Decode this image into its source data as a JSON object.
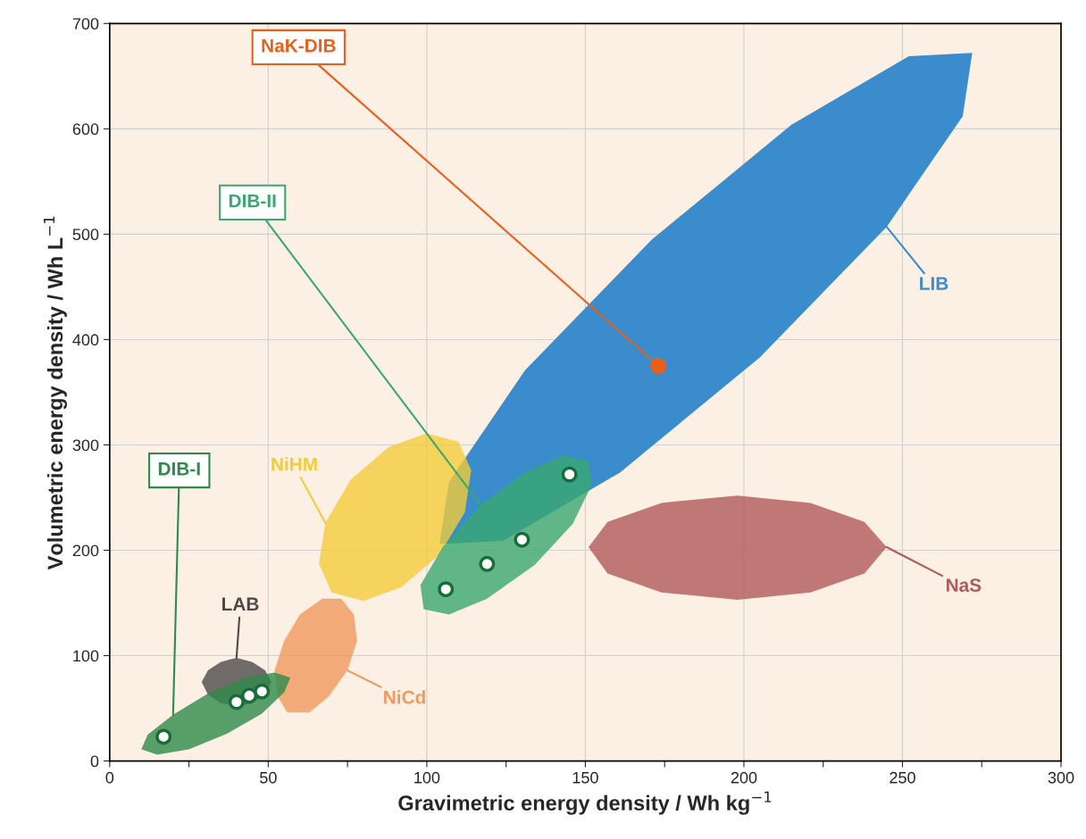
{
  "chart_data": {
    "type": "scatter",
    "xlabel": "Gravimetric energy density / Wh kg$^{−1}$",
    "ylabel": "Volumetric energy density / Wh L$^{−1}$",
    "xlim": [
      0,
      300
    ],
    "ylim": [
      0,
      700
    ],
    "xticks": [
      0,
      {
        "value": 25,
        "label": null
      },
      50,
      {
        "value": 75,
        "label": null
      },
      100,
      {
        "value": 125,
        "label": null
      },
      150,
      {
        "value": 175,
        "label": null
      },
      200,
      {
        "value": 225,
        "label": null
      },
      250,
      {
        "value": 275,
        "label": null
      },
      300
    ],
    "yticks": [
      0,
      100,
      200,
      300,
      400,
      500,
      600,
      700
    ],
    "grid": true,
    "series": [
      {
        "type": "area",
        "name": "LIB",
        "color": "#3a8ccc",
        "x": [
          272,
          252,
          215,
          171,
          131,
          107,
          104,
          124,
          161,
          205,
          245,
          269
        ],
        "values": [
          672,
          669,
          604,
          495,
          371,
          265,
          206,
          209,
          274,
          383,
          507,
          612
        ]
      },
      {
        "type": "area",
        "name": "NaS",
        "color": "#b05a5a",
        "x": [
          245,
          238,
          221,
          198,
          174,
          157,
          151,
          157,
          174,
          198,
          221,
          238
        ],
        "values": [
          203,
          227,
          245,
          252,
          245,
          227,
          203,
          178,
          160,
          153,
          160,
          178
        ]
      },
      {
        "type": "area",
        "name": "NiHM",
        "color": "#f2cc3a",
        "x": [
          110,
          100,
          88,
          76,
          68,
          66,
          70,
          80,
          92,
          104,
          112,
          114
        ],
        "values": [
          303,
          311,
          298,
          267,
          226,
          187,
          160,
          152,
          165,
          196,
          236,
          276
        ]
      },
      {
        "type": "area",
        "name": "NiCd",
        "color": "#ef9a5c",
        "x": [
          73,
          67,
          60,
          55,
          52,
          53,
          56,
          63,
          69,
          75,
          78,
          77
        ],
        "values": [
          154,
          154,
          139,
          114,
          86,
          61,
          46,
          46,
          61,
          86,
          114,
          139
        ]
      },
      {
        "type": "area",
        "name": "LAB",
        "color": "#4a4a4a",
        "x": [
          51,
          49,
          45,
          40,
          35,
          31,
          29,
          31,
          35,
          40,
          45,
          49
        ],
        "values": [
          75,
          86,
          94,
          98,
          94,
          86,
          75,
          63,
          55,
          52,
          55,
          63
        ]
      },
      {
        "type": "area",
        "name": "DIB-I",
        "color": "#2e8a4a",
        "x": [
          57,
          52,
          43,
          31,
          20,
          12,
          10,
          15,
          25,
          37,
          48,
          55
        ],
        "values": [
          79,
          84,
          79,
          64,
          44,
          25,
          11,
          6,
          11,
          26,
          45,
          65
        ]
      },
      {
        "type": "area",
        "name": "DIB-II",
        "color": "#3aa870",
        "x": [
          151,
          143,
          131,
          117,
          105,
          98,
          99,
          107,
          119,
          134,
          146,
          152
        ],
        "values": [
          285,
          290,
          274,
          243,
          203,
          167,
          144,
          139,
          154,
          186,
          225,
          262
        ]
      },
      {
        "color": "#1a6b3a",
        "x": [
          17,
          40,
          44,
          48
        ],
        "values": [
          23,
          56,
          62,
          66
        ]
      },
      {
        "color": "#1a6b3a",
        "x": [
          106,
          119,
          130,
          145
        ],
        "values": [
          163,
          187,
          210,
          272
        ]
      },
      {
        "name": "NaK-DIB",
        "color": "#e8601c",
        "x": [
          173
        ],
        "values": [
          375
        ]
      }
    ]
  }
}
